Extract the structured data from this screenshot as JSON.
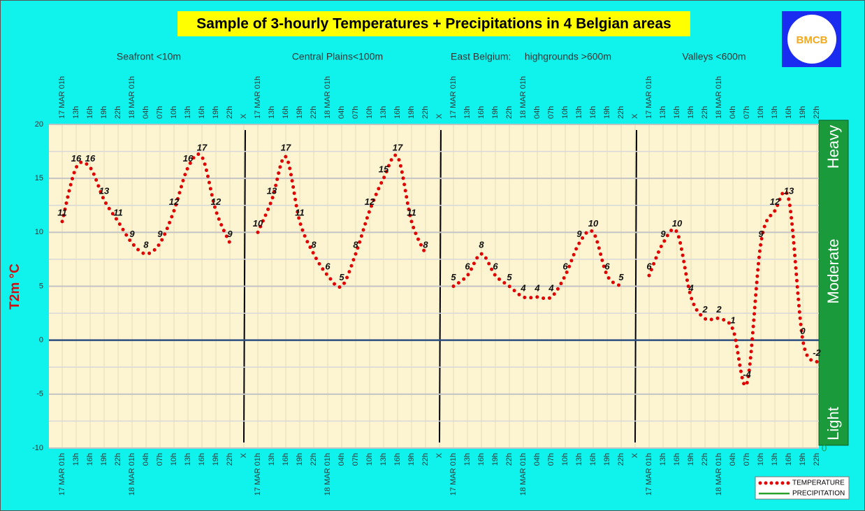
{
  "chart_data": {
    "type": "line",
    "title": "Sample of 3-hourly Temperatures + Precipitations in 4 Belgian areas",
    "logo_text": "BMCB",
    "group_labels": [
      "Seafront <10m",
      "Central Plains<100m",
      "East Belgium:     highgrounds >600m",
      "Valleys <600m"
    ],
    "y_label": "T2m °C",
    "precipitation_levels": [
      "Heavy",
      "Moderate",
      "Light"
    ],
    "categories": [
      "17 MAR 01h",
      "13h",
      "16h",
      "19h",
      "22h",
      "18 MAR 01h",
      "04h",
      "07h",
      "10h",
      "13h",
      "16h",
      "19h",
      "22h",
      "X",
      "17 MAR 01h",
      "13h",
      "16h",
      "19h",
      "22h",
      "18 MAR 01h",
      "04h",
      "07h",
      "10h",
      "13h",
      "16h",
      "19h",
      "22h",
      "X",
      "17 MAR 01h",
      "13h",
      "16h",
      "19h",
      "22h",
      "18 MAR 01h",
      "04h",
      "07h",
      "10h",
      "13h",
      "16h",
      "19h",
      "22h",
      "X",
      "17 MAR 01h",
      "13h",
      "16h",
      "19h",
      "22h",
      "18 MAR 01h",
      "04h",
      "07h",
      "10h",
      "13h",
      "16h",
      "19h",
      "22h"
    ],
    "series": [
      {
        "name": "TEMPERATURE",
        "color": "#e00000",
        "values": [
          11,
          16,
          16,
          13,
          11,
          9,
          8,
          9,
          12,
          16,
          17,
          12,
          9,
          null,
          10,
          13,
          17,
          11,
          8,
          6,
          5,
          8,
          12,
          15,
          17,
          11,
          8,
          null,
          5,
          6,
          8,
          6,
          5,
          4,
          4,
          4,
          6,
          9,
          10,
          6,
          5,
          null,
          6,
          9,
          10,
          4,
          2,
          2,
          1,
          -4,
          9,
          12,
          13,
          0,
          -2
        ]
      },
      {
        "name": "PRECIPITATION",
        "color": "#2ca02c",
        "axis": "y2",
        "values": [
          null,
          null,
          null,
          null,
          null,
          null,
          null,
          null,
          null,
          null,
          null,
          null,
          null,
          null,
          null,
          null,
          null,
          null,
          null,
          null,
          null,
          null,
          null,
          null,
          null,
          null,
          null,
          null,
          null,
          null,
          null,
          null,
          null,
          null,
          null,
          null,
          null,
          null,
          null,
          null,
          null,
          null,
          null,
          null,
          null,
          null,
          null,
          null,
          null,
          null,
          null,
          null,
          null,
          null,
          null
        ]
      }
    ],
    "ylim": [
      -10,
      20
    ],
    "yticks": [
      20,
      15,
      10,
      5,
      0,
      -5,
      -10
    ],
    "y2ticks": [
      0
    ],
    "grid": true
  }
}
